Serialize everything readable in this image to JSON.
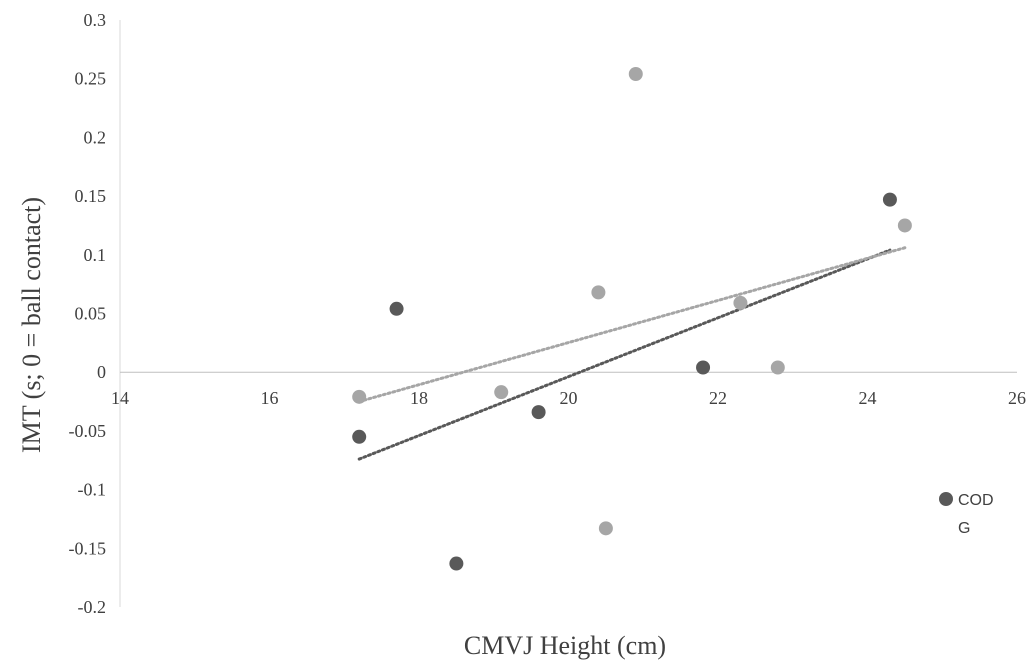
{
  "chart_data": {
    "type": "scatter",
    "title": "",
    "xlabel": "CMVJ Height (cm)",
    "ylabel": "IMT (s; 0 = ball contact)",
    "xlim": [
      14,
      26
    ],
    "ylim": [
      -0.2,
      0.3
    ],
    "x_ticks": [
      "14",
      "16",
      "18",
      "20",
      "22",
      "24",
      "26"
    ],
    "y_ticks": [
      "0.3",
      "0.25",
      "0.2",
      "0.15",
      "0.1",
      "0.05",
      "0",
      "-0.05",
      "-0.1",
      "-0.15",
      "-0.2"
    ],
    "grid": false,
    "legend_position": "right",
    "series": [
      {
        "name": "COD",
        "color": "#595959",
        "points": [
          {
            "x": 17.2,
            "y": -0.055
          },
          {
            "x": 17.7,
            "y": 0.054
          },
          {
            "x": 18.5,
            "y": -0.163
          },
          {
            "x": 19.6,
            "y": -0.034
          },
          {
            "x": 21.8,
            "y": 0.004
          },
          {
            "x": 24.3,
            "y": 0.147
          }
        ],
        "trendline": {
          "x": [
            17.2,
            24.3
          ],
          "y": [
            -0.074,
            0.104
          ]
        }
      },
      {
        "name": "G",
        "color": "#a6a6a6",
        "points": [
          {
            "x": 17.2,
            "y": -0.021
          },
          {
            "x": 19.1,
            "y": -0.017
          },
          {
            "x": 20.4,
            "y": 0.068
          },
          {
            "x": 20.5,
            "y": -0.133
          },
          {
            "x": 20.9,
            "y": 0.254
          },
          {
            "x": 22.3,
            "y": 0.059
          },
          {
            "x": 22.8,
            "y": 0.004
          },
          {
            "x": 24.5,
            "y": 0.125
          }
        ],
        "trendline": {
          "x": [
            17.2,
            24.5
          ],
          "y": [
            -0.025,
            0.106
          ]
        }
      }
    ]
  }
}
